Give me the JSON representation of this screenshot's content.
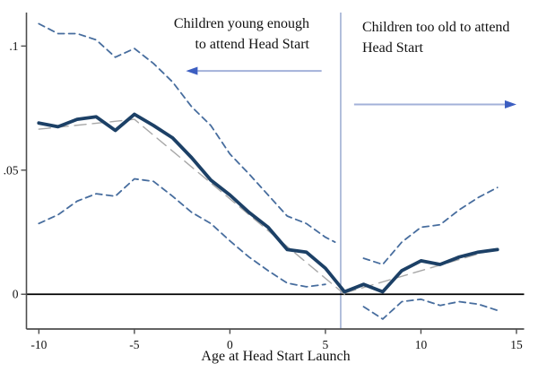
{
  "chart_data": {
    "type": "line",
    "title": "",
    "xlabel": "Age at Head Start Launch",
    "ylabel": "",
    "xlim": [
      -10.65,
      15.4
    ],
    "ylim": [
      -0.014,
      0.1135
    ],
    "xticks": [
      -10,
      -5,
      0,
      5,
      10,
      15
    ],
    "xtick_labels": [
      "-10",
      "-5",
      "0",
      "5",
      "10",
      "15"
    ],
    "yticks": [
      0,
      0.05,
      0.1
    ],
    "ytick_labels": [
      "0",
      ".05",
      ".1"
    ],
    "grid": false,
    "legend_position": "none",
    "cutoff_line_x": 5.8,
    "zero_line_y": 0,
    "series": [
      {
        "name": "estimate",
        "style": "solid",
        "color": "#1c4066",
        "width": 3.8,
        "x": [
          -10,
          -9,
          -8,
          -7,
          -6,
          -5,
          -4,
          -3,
          -2,
          -1,
          0,
          1,
          2,
          3,
          4,
          5,
          6,
          7,
          8,
          9,
          10,
          11,
          12,
          13,
          14
        ],
        "y": [
          0.069,
          0.0675,
          0.0705,
          0.0715,
          0.066,
          0.0725,
          0.068,
          0.063,
          0.055,
          0.046,
          0.04,
          0.033,
          0.027,
          0.018,
          0.017,
          0.0105,
          0.001,
          0.004,
          0.001,
          0.0095,
          0.0135,
          0.012,
          0.015,
          0.017,
          0.018
        ]
      },
      {
        "name": "ci-upper-left",
        "style": "dashed",
        "color": "#476d9e",
        "width": 1.8,
        "x": [
          -10,
          -9,
          -8,
          -7,
          -6,
          -5,
          -4,
          -3,
          -2,
          -1,
          0,
          1,
          2,
          3,
          4,
          5,
          5.5
        ],
        "y": [
          0.109,
          0.105,
          0.105,
          0.1025,
          0.0955,
          0.099,
          0.093,
          0.0855,
          0.0755,
          0.068,
          0.0565,
          0.0485,
          0.04,
          0.0315,
          0.0285,
          0.023,
          0.021
        ]
      },
      {
        "name": "ci-lower-left",
        "style": "dashed",
        "color": "#476d9e",
        "width": 1.8,
        "x": [
          -10,
          -9,
          -8,
          -7,
          -6,
          -5,
          -4,
          -3,
          -2,
          -1,
          0,
          1,
          2,
          3,
          4,
          5
        ],
        "y": [
          0.0285,
          0.032,
          0.0375,
          0.0405,
          0.0395,
          0.0465,
          0.0455,
          0.0395,
          0.033,
          0.0285,
          0.0215,
          0.015,
          0.0095,
          0.0045,
          0.003,
          0.004
        ]
      },
      {
        "name": "ci-upper-right",
        "style": "dashed",
        "color": "#476d9e",
        "width": 1.8,
        "x": [
          7,
          8,
          9,
          10,
          11,
          12,
          13,
          14
        ],
        "y": [
          0.0145,
          0.012,
          0.021,
          0.027,
          0.028,
          0.034,
          0.039,
          0.043
        ]
      },
      {
        "name": "ci-lower-right",
        "style": "dashed",
        "color": "#476d9e",
        "width": 1.8,
        "x": [
          7,
          8,
          9,
          10,
          11,
          12,
          13,
          14
        ],
        "y": [
          -0.005,
          -0.01,
          -0.003,
          -0.002,
          -0.0045,
          -0.003,
          -0.004,
          -0.0065
        ]
      },
      {
        "name": "trend-left",
        "style": "longdash",
        "color": "#a8a8a8",
        "width": 1.4,
        "x": [
          -10,
          -5,
          6
        ],
        "y": [
          0.0665,
          0.0705,
          0.0
        ]
      },
      {
        "name": "trend-right",
        "style": "longdash",
        "color": "#a8a8a8",
        "width": 1.4,
        "x": [
          6,
          14
        ],
        "y": [
          0.0005,
          0.0185
        ]
      }
    ],
    "annotations": {
      "left": {
        "line1": "Children young enough",
        "line2": "to attend Head Start",
        "arrow": {
          "y": 0.09,
          "x_tail": 4.8,
          "x_head": -2.3,
          "direction": "left"
        }
      },
      "right": {
        "line1": "Children too old to attend",
        "line2": "Head Start",
        "arrow": {
          "y": 0.0765,
          "x_tail": 6.5,
          "x_head": 15.0,
          "direction": "right"
        }
      }
    },
    "colors": {
      "estimate_line": "#1c4066",
      "confidence_dashed": "#476d9e",
      "trend_gray": "#a8a8a8",
      "cutoff_line": "#8a9cc8",
      "zero_line": "#000000",
      "axis": "#4d4d4d",
      "arrow_shaft": "#a3b1d9",
      "arrow_head": "#3c5ec1",
      "text": "#111111"
    }
  }
}
